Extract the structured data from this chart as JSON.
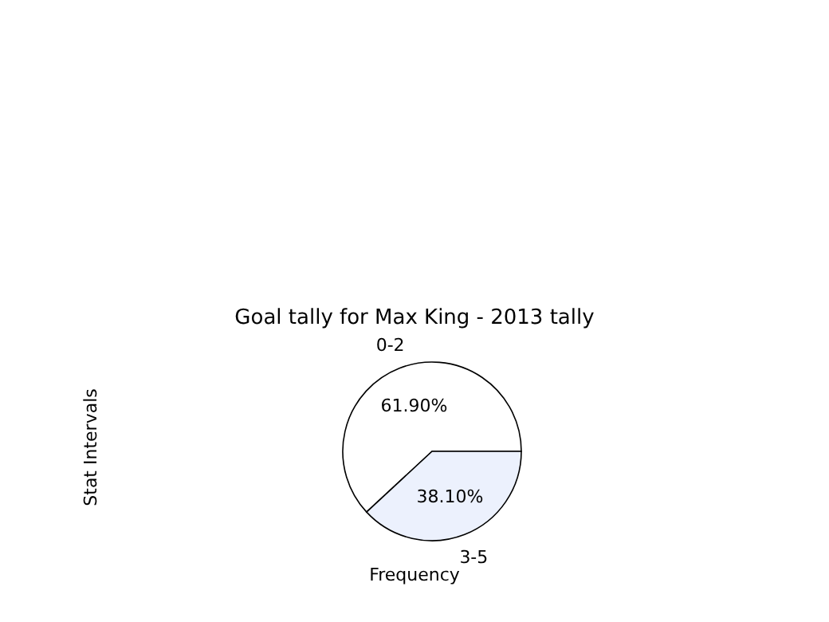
{
  "chart_data": {
    "type": "pie",
    "title": "Goal tally for Max King - 2013 tally",
    "xlabel": "Frequency",
    "ylabel": "Stat Intervals",
    "categories": [
      "0-2",
      "3-5"
    ],
    "values": [
      61.9,
      38.1
    ],
    "value_labels": [
      "61.90%",
      "38.10%"
    ],
    "colors": [
      "#ffffff",
      "#ecf1fd"
    ],
    "legend": false
  }
}
